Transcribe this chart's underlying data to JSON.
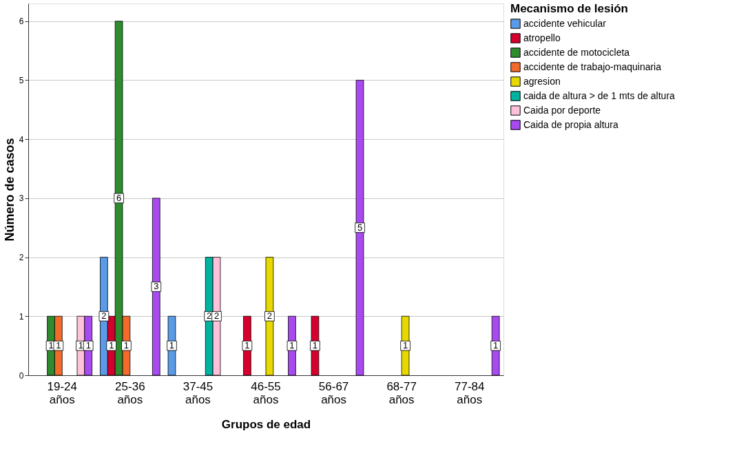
{
  "chart_data": {
    "type": "bar",
    "xlabel": "Grupos de edad",
    "ylabel": "Número de casos",
    "legend_title": "Mecanismo de lesión",
    "categories": [
      "19-24 años",
      "25-36 años",
      "37-45 años",
      "46-55 años",
      "56-67 años",
      "68-77 años",
      "77-84 años"
    ],
    "series": [
      {
        "name": "accidente vehicular",
        "color": "#5a9ae6",
        "values": [
          null,
          2,
          1,
          null,
          null,
          null,
          null
        ]
      },
      {
        "name": "atropello",
        "color": "#d6002e",
        "values": [
          null,
          1,
          null,
          1,
          1,
          null,
          null
        ]
      },
      {
        "name": "accidente de motocicleta",
        "color": "#2e8b2e",
        "values": [
          1,
          6,
          null,
          null,
          null,
          null,
          null
        ]
      },
      {
        "name": "accidente de trabajo-maquinaria",
        "color": "#f26b2a",
        "values": [
          1,
          1,
          null,
          null,
          null,
          null,
          null
        ]
      },
      {
        "name": "agresion",
        "color": "#e6d800",
        "values": [
          null,
          null,
          null,
          2,
          null,
          1,
          null
        ]
      },
      {
        "name": "caida de altura > de 1 mts de altura",
        "color": "#00b3a0",
        "values": [
          null,
          null,
          2,
          null,
          null,
          null,
          null
        ]
      },
      {
        "name": "Caida  por deporte",
        "color": "#ffc0dc",
        "values": [
          1,
          null,
          2,
          null,
          null,
          null,
          null
        ]
      },
      {
        "name": "Caida  de  propia altura",
        "color": "#a84af0",
        "values": [
          1,
          3,
          null,
          1,
          5,
          null,
          1
        ]
      }
    ],
    "ylim": [
      0,
      6.3
    ],
    "yticks": [
      0,
      1,
      2,
      3,
      4,
      5,
      6
    ],
    "grid": "y",
    "legend": "top right",
    "data_labels": true
  }
}
